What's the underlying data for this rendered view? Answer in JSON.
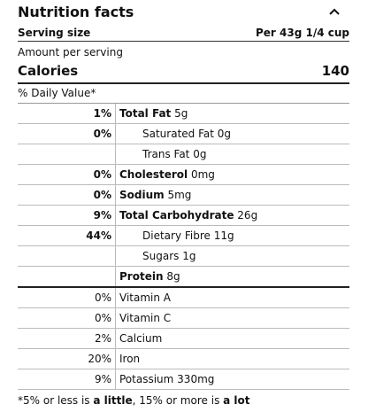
{
  "title": "Nutrition facts",
  "serving_size": {
    "label": "Serving size",
    "value": "Per 43g 1/4 cup"
  },
  "amount_per_serving": "Amount per serving",
  "calories": {
    "label": "Calories",
    "value": "140"
  },
  "daily_value_header": "% Daily Value*",
  "rows": [
    {
      "percent": "1%",
      "name": "Total Fat",
      "amount": "5g",
      "bold_name": true,
      "bold_percent": true
    },
    {
      "percent": "0%",
      "name": "Saturated Fat",
      "amount": "0g",
      "indent": true,
      "bold_percent": true
    },
    {
      "name": "Trans Fat",
      "amount": "0g",
      "indent": true
    },
    {
      "percent": "0%",
      "name": "Cholesterol",
      "amount": "0mg",
      "bold_name": true,
      "bold_percent": true
    },
    {
      "percent": "0%",
      "name": "Sodium",
      "amount": "5mg",
      "bold_name": true,
      "bold_percent": true
    },
    {
      "percent": "9%",
      "name": "Total Carbohydrate",
      "amount": "26g",
      "bold_name": true,
      "bold_percent": true
    },
    {
      "percent": "44%",
      "name": "Dietary Fibre",
      "amount": "11g",
      "indent": true,
      "bold_percent": true
    },
    {
      "name": "Sugars",
      "amount": "1g",
      "indent": true
    },
    {
      "name": "Protein",
      "amount": "8g",
      "bold_name": true,
      "section_end": true
    },
    {
      "percent": "0%",
      "name": "Vitamin A"
    },
    {
      "percent": "0%",
      "name": "Vitamin C"
    },
    {
      "percent": "2%",
      "name": "Calcium"
    },
    {
      "percent": "20%",
      "name": "Iron"
    },
    {
      "percent": "9%",
      "name": "Potassium",
      "amount": "330mg"
    }
  ],
  "footnote": [
    "*5% or less is ",
    "a little",
    ", 15% or more is ",
    "a lot"
  ]
}
